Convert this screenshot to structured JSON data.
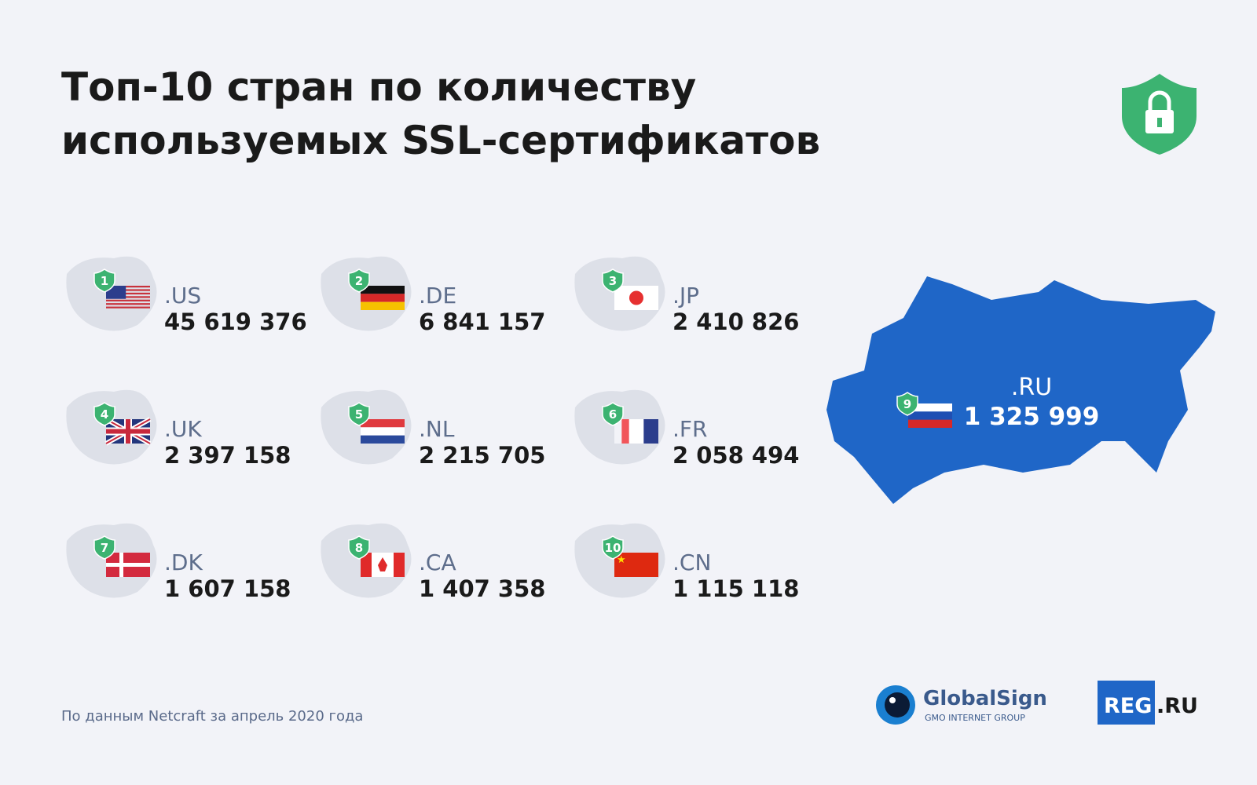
{
  "header": {
    "title_lines": [
      "Топ-10 стран по количеству",
      "используемых SSL-сертификатов"
    ]
  },
  "items": [
    {
      "rank": "1",
      "domain": ".US",
      "count": "45 619 376"
    },
    {
      "rank": "2",
      "domain": ".DE",
      "count": "6 841 157"
    },
    {
      "rank": "3",
      "domain": ".JP",
      "count": "2 410 826"
    },
    {
      "rank": "4",
      "domain": ".UK",
      "count": "2 397 158"
    },
    {
      "rank": "5",
      "domain": ".NL",
      "count": "2 215 705"
    },
    {
      "rank": "6",
      "domain": ".FR",
      "count": "2 058 494"
    },
    {
      "rank": "7",
      "domain": ".DK",
      "count": "1 607 158"
    },
    {
      "rank": "8",
      "domain": ".CA",
      "count": "1 407 358"
    },
    {
      "rank": "9",
      "domain": ".RU",
      "count": "1 325 999"
    },
    {
      "rank": "10",
      "domain": ".CN",
      "count": "1 115 118"
    }
  ],
  "footer": {
    "source": "По данным Netcraft за апрель 2020 года",
    "logos": {
      "globalsign": "GlobalSign",
      "globalsign_sub": "GMO INTERNET GROUP",
      "reg": "REG",
      "reg_suffix": ".RU"
    }
  }
}
